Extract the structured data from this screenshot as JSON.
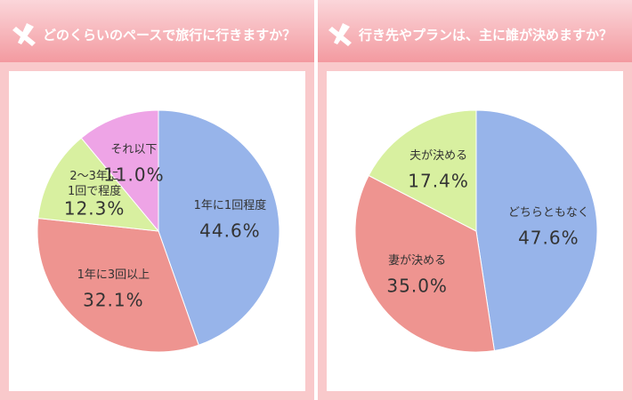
{
  "chart_data": [
    {
      "type": "pie",
      "title": "どのくらいのペースで旅行に行きますか？",
      "categories": [
        "1年に1回程度",
        "1年に3回以上",
        "2～3年に\n1回で程度",
        "それ以下"
      ],
      "values": [
        44.6,
        32.1,
        12.3,
        11.0
      ],
      "value_labels": [
        "44.6%",
        "32.1%",
        "12.3%",
        "11.0%"
      ],
      "colors": [
        "#97b4ea",
        "#ee9490",
        "#d8f0a0",
        "#eea4e6"
      ]
    },
    {
      "type": "pie",
      "title": "行き先やプランは、主に誰が決めますか？",
      "categories": [
        "どちらともなく",
        "妻が決める",
        "夫が決める"
      ],
      "values": [
        47.6,
        35.0,
        17.4
      ],
      "value_labels": [
        "47.6%",
        "35.0%",
        "17.4%"
      ],
      "colors": [
        "#97b4ea",
        "#ee9490",
        "#d8f0a0"
      ]
    }
  ]
}
